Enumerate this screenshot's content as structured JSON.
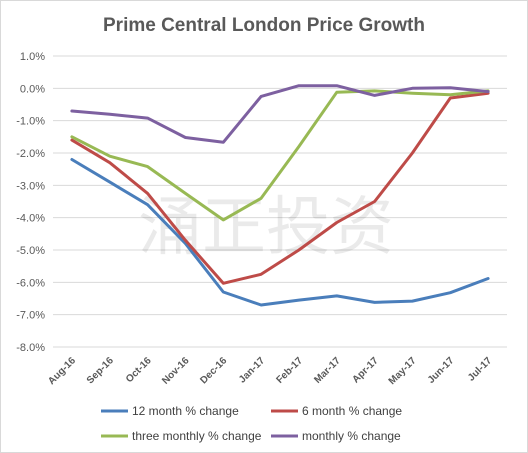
{
  "chart_data": {
    "type": "line",
    "title": "Prime Central London Price Growth",
    "categories": [
      "Aug-16",
      "Sep-16",
      "Oct-16",
      "Nov-16",
      "Dec-16",
      "Jan-17",
      "Feb-17",
      "Mar-17",
      "Apr-17",
      "May-17",
      "Jun-17",
      "Jul-17"
    ],
    "ylim": [
      -8.0,
      1.0
    ],
    "yticks": [
      1.0,
      0.0,
      -1.0,
      -2.0,
      -3.0,
      -4.0,
      -5.0,
      -6.0,
      -7.0,
      -8.0
    ],
    "ytick_labels": [
      "1.0%",
      "0.0%",
      "-1.0%",
      "-2.0%",
      "-3.0%",
      "-4.0%",
      "-5.0%",
      "-6.0%",
      "-7.0%",
      "-8.0%"
    ],
    "grid": true,
    "legend_position": "bottom",
    "series": [
      {
        "name": "12 month % change",
        "color": "#4a7ebb",
        "values": [
          -2.2,
          -2.9,
          -3.6,
          -4.8,
          -6.3,
          -6.7,
          -6.55,
          -6.42,
          -6.62,
          -6.58,
          -6.32,
          -5.88
        ]
      },
      {
        "name": "6 month % change",
        "color": "#be4b48",
        "values": [
          -1.6,
          -2.3,
          -3.25,
          -4.7,
          -6.03,
          -5.75,
          -5.0,
          -4.15,
          -3.5,
          -2.0,
          -0.3,
          -0.15
        ]
      },
      {
        "name": "three monthly % change",
        "color": "#98b954",
        "values": [
          -1.5,
          -2.1,
          -2.42,
          -3.25,
          -4.07,
          -3.4,
          -1.8,
          -0.12,
          -0.08,
          -0.15,
          -0.2,
          -0.08
        ]
      },
      {
        "name": "monthly % change",
        "color": "#7d60a0",
        "values": [
          -0.7,
          -0.8,
          -0.92,
          -1.52,
          -1.67,
          -0.25,
          0.08,
          0.08,
          -0.22,
          0.0,
          0.02,
          -0.1
        ]
      }
    ],
    "watermark": "涌正投资"
  }
}
